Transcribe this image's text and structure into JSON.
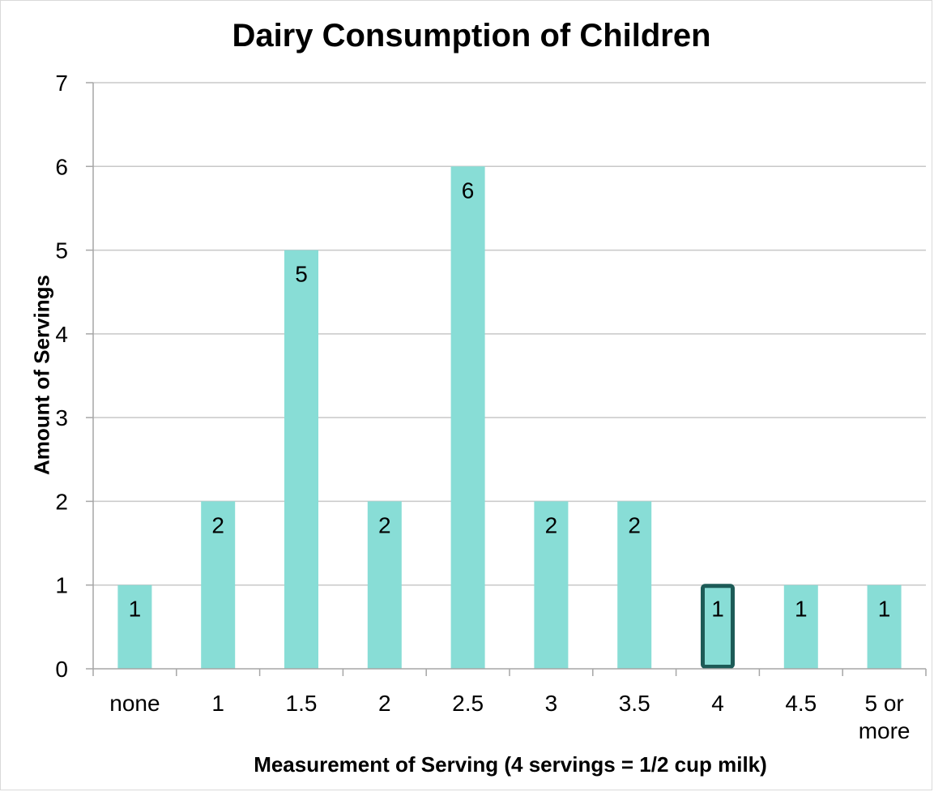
{
  "chart_data": {
    "type": "bar",
    "title": "Dairy Consumption of Children",
    "xlabel": "Measurement of Serving (4 servings = 1/2 cup milk)",
    "ylabel": "Amount of Servings",
    "categories": [
      "none",
      "1",
      "1.5",
      "2",
      "2.5",
      "3",
      "3.5",
      "4",
      "4.5",
      "5 or more"
    ],
    "category_lines": [
      [
        "none"
      ],
      [
        "1"
      ],
      [
        "1.5"
      ],
      [
        "2"
      ],
      [
        "2.5"
      ],
      [
        "3"
      ],
      [
        "3.5"
      ],
      [
        "4"
      ],
      [
        "4.5"
      ],
      [
        "5 or",
        "more"
      ]
    ],
    "values": [
      1,
      2,
      5,
      2,
      6,
      2,
      2,
      1,
      1,
      1
    ],
    "data_labels": [
      "1",
      "2",
      "5",
      "2",
      "6",
      "2",
      "2",
      "1",
      "1",
      "1"
    ],
    "ylim": [
      0,
      7
    ],
    "yticks": [
      0,
      1,
      2,
      3,
      4,
      5,
      6,
      7
    ],
    "grid": true,
    "bar_color": "#88ddd6",
    "highlight_index": 7,
    "highlight_outline_color": "#1d5b57",
    "grid_color": "#c8c8c8",
    "axis_color": "#a6a6a6"
  }
}
